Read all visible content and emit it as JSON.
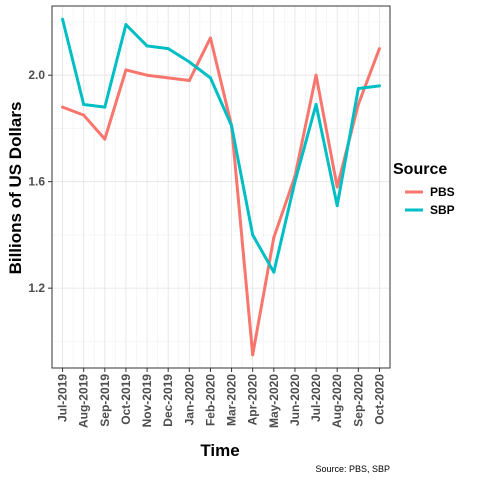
{
  "chart_data": {
    "type": "line",
    "title": "",
    "xlabel": "Time",
    "ylabel": "Billions of US Dollars",
    "caption": "Source: PBS, SBP",
    "categories": [
      "Jul-2019",
      "Aug-2019",
      "Sep-2019",
      "Oct-2019",
      "Nov-2019",
      "Dec-2019",
      "Jan-2020",
      "Feb-2020",
      "Mar-2020",
      "Apr-2020",
      "May-2020",
      "Jun-2020",
      "Jul-2020",
      "Aug-2020",
      "Sep-2020",
      "Oct-2020"
    ],
    "ylim": [
      0.9,
      2.26
    ],
    "yticks": [
      "1.2",
      "1.6",
      "2.0"
    ],
    "ytick_values": [
      1.2,
      1.6,
      2.0
    ],
    "grid": true,
    "legend": {
      "title": "Source",
      "position": "right"
    },
    "series": [
      {
        "name": "PBS",
        "color": "#f8766d",
        "values": [
          1.88,
          1.85,
          1.76,
          2.02,
          2.0,
          1.99,
          1.98,
          2.14,
          1.81,
          0.95,
          1.39,
          1.62,
          2.0,
          1.58,
          1.89,
          2.1
        ]
      },
      {
        "name": "SBP",
        "color": "#00bfc4",
        "values": [
          2.21,
          1.89,
          1.88,
          2.19,
          2.11,
          2.1,
          2.05,
          1.99,
          1.81,
          1.4,
          1.26,
          1.6,
          1.89,
          1.51,
          1.95,
          1.96
        ]
      }
    ]
  }
}
